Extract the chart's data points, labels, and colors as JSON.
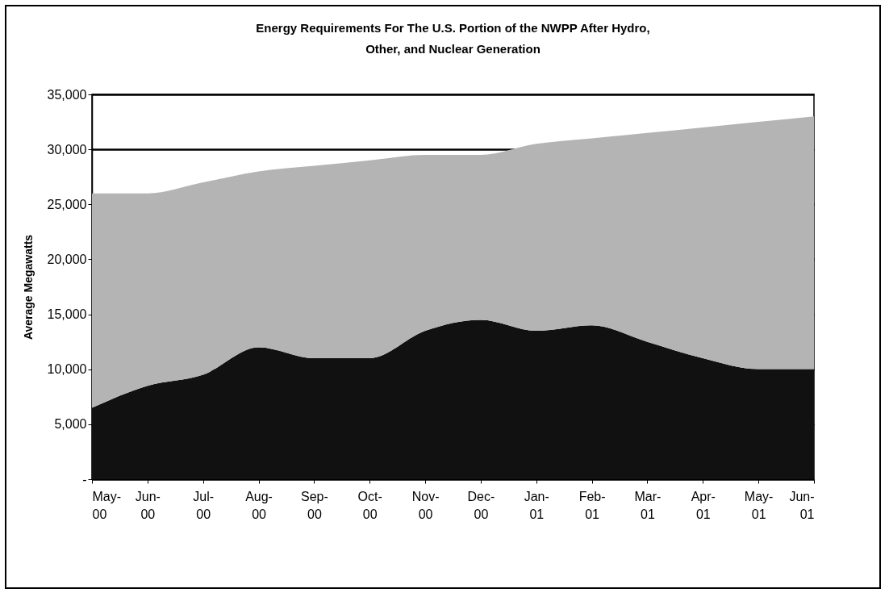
{
  "chart_data": {
    "type": "area",
    "title": "Energy Requirements For The U.S. Portion of the NWPP After Hydro, Other, and Nuclear Generation",
    "ylabel": "Average Megawatts",
    "categories": [
      "May-00",
      "Jun-00",
      "Jul-00",
      "Aug-00",
      "Sep-00",
      "Oct-00",
      "Nov-00",
      "Dec-00",
      "Jan-01",
      "Feb-01",
      "Mar-01",
      "Apr-01",
      "May-01",
      "Jun-01"
    ],
    "stacked": true,
    "series": [
      {
        "color": "#111111",
        "values": [
          6500,
          8500,
          9500,
          12000,
          11000,
          11000,
          13500,
          14500,
          13500,
          14000,
          12500,
          11000,
          10000,
          10000
        ]
      },
      {
        "color": "#b4b4b4",
        "values": [
          19500,
          17500,
          17500,
          16000,
          17500,
          18000,
          16000,
          15000,
          17000,
          17000,
          19000,
          21000,
          22500,
          23000
        ]
      }
    ],
    "ylim": [
      0,
      35000
    ],
    "yticks": [
      {
        "value": 0,
        "label": "-"
      },
      {
        "value": 5000,
        "label": "5,000"
      },
      {
        "value": 10000,
        "label": "10,000"
      },
      {
        "value": 15000,
        "label": "15,000"
      },
      {
        "value": 20000,
        "label": "20,000"
      },
      {
        "value": 25000,
        "label": "25,000"
      },
      {
        "value": 30000,
        "label": "30,000"
      },
      {
        "value": 35000,
        "label": "35,000"
      }
    ],
    "grid": "y",
    "legend": false
  }
}
